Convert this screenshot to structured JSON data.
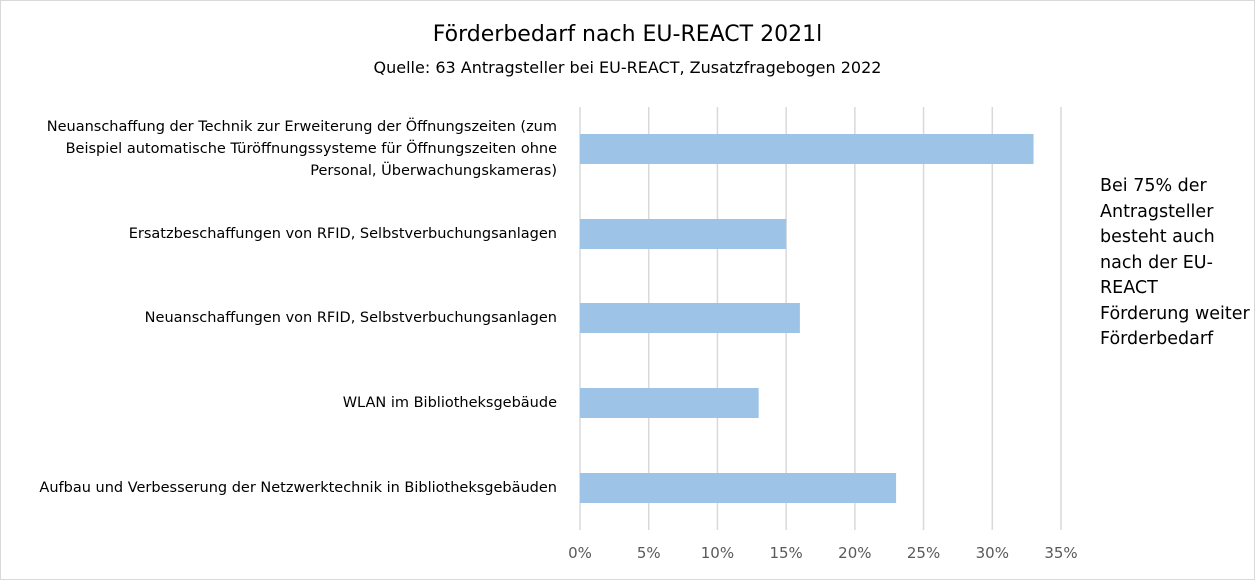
{
  "chart_data": {
    "type": "bar",
    "orientation": "horizontal",
    "title": "Förderbedarf nach EU-REACT 2021l",
    "subtitle": "Quelle: 63 Antragsteller bei EU-REACT, Zusatzfragebogen 2022",
    "categories": [
      "Neuanschaffung der Technik zur Erweiterung der Öffnungszeiten (zum Beispiel automatische Türöffnungssysteme für Öffnungszeiten ohne Personal, Überwachungskameras)",
      "Ersatzbeschaffungen von RFID, Selbstverbuchungsanlagen",
      "Neuanschaffungen von RFID, Selbstverbuchungsanlagen",
      "WLAN im Bibliotheksgebäude",
      "Aufbau und Verbesserung der Netzwerktechnik in Bibliotheksgebäuden"
    ],
    "values": [
      33,
      15,
      16,
      13,
      23
    ],
    "xlabel": "",
    "ylabel": "",
    "xlim": [
      0,
      35
    ],
    "xticks": [
      "0%",
      "5%",
      "10%",
      "15%",
      "20%",
      "25%",
      "30%",
      "35%"
    ],
    "grid": true,
    "bar_color": "#9dc3e6",
    "grid_color": "#d9d9d9",
    "annotation": "Bei 75% der Antragsteller besteht auch nach der EU-REACT Förderung weiter Förderbedarf"
  }
}
